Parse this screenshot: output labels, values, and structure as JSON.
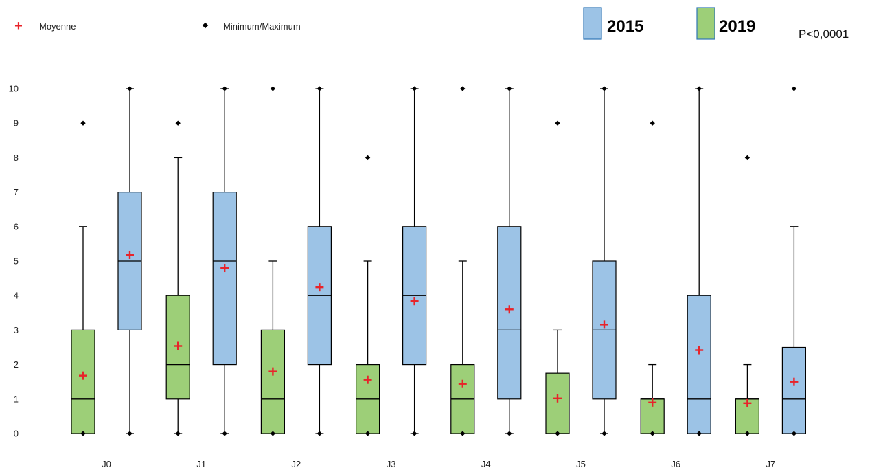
{
  "chart_data": {
    "type": "boxplot",
    "categories": [
      "J0",
      "J1",
      "J2",
      "J3",
      "J4",
      "J5",
      "J6",
      "J7"
    ],
    "ylim": [
      0,
      10
    ],
    "yticks": [
      "0",
      "1",
      "2",
      "3",
      "4",
      "5",
      "6",
      "7",
      "8",
      "9",
      "10"
    ],
    "grid": false,
    "legend": {
      "mean_label": "Moyenne",
      "minmax_label": "Minimum/Maximum",
      "placement": "top"
    },
    "annotation": "P<0,0001",
    "colors": {
      "2019": "#9dcf78",
      "2015": "#9cc3e6",
      "mean_marker": "#e8232a",
      "outline": "#000000"
    },
    "series": [
      {
        "name": "2019",
        "boxes": [
          {
            "category": "J0",
            "q1": 0,
            "median": 1,
            "q3": 3,
            "whisker_low": 0,
            "whisker_high": 6,
            "mean": 1.68,
            "min": 0,
            "max": 9
          },
          {
            "category": "J1",
            "q1": 1,
            "median": 2,
            "q3": 4,
            "whisker_low": 0,
            "whisker_high": 8,
            "mean": 2.54,
            "min": 0,
            "max": 9
          },
          {
            "category": "J2",
            "q1": 0,
            "median": 1,
            "q3": 3,
            "whisker_low": 0,
            "whisker_high": 5,
            "mean": 1.8,
            "min": 0,
            "max": 10
          },
          {
            "category": "J3",
            "q1": 0,
            "median": 1,
            "q3": 2,
            "whisker_low": 0,
            "whisker_high": 5,
            "mean": 1.56,
            "min": 0,
            "max": 8
          },
          {
            "category": "J4",
            "q1": 0,
            "median": 1,
            "q3": 2,
            "whisker_low": 0,
            "whisker_high": 5,
            "mean": 1.44,
            "min": 0,
            "max": 10
          },
          {
            "category": "J5",
            "q1": 0,
            "median": 0,
            "q3": 1.75,
            "whisker_low": 0,
            "whisker_high": 3,
            "mean": 1.02,
            "min": 0,
            "max": 9
          },
          {
            "category": "J6",
            "q1": 0,
            "median": 1,
            "q3": 1,
            "whisker_low": 0,
            "whisker_high": 2,
            "mean": 0.9,
            "min": 0,
            "max": 9
          },
          {
            "category": "J7",
            "q1": 0,
            "median": 1,
            "q3": 1,
            "whisker_low": 0,
            "whisker_high": 2,
            "mean": 0.88,
            "min": 0,
            "max": 8
          }
        ]
      },
      {
        "name": "2015",
        "boxes": [
          {
            "category": "J0",
            "q1": 3,
            "median": 5,
            "q3": 7,
            "whisker_low": 0,
            "whisker_high": 10,
            "mean": 5.18,
            "min": 0,
            "max": 10
          },
          {
            "category": "J1",
            "q1": 2,
            "median": 5,
            "q3": 7,
            "whisker_low": 0,
            "whisker_high": 10,
            "mean": 4.8,
            "min": 0,
            "max": 10
          },
          {
            "category": "J2",
            "q1": 2,
            "median": 4,
            "q3": 6,
            "whisker_low": 0,
            "whisker_high": 10,
            "mean": 4.24,
            "min": 0,
            "max": 10
          },
          {
            "category": "J3",
            "q1": 2,
            "median": 4,
            "q3": 6,
            "whisker_low": 0,
            "whisker_high": 10,
            "mean": 3.84,
            "min": 0,
            "max": 10
          },
          {
            "category": "J4",
            "q1": 1,
            "median": 3,
            "q3": 6,
            "whisker_low": 0,
            "whisker_high": 10,
            "mean": 3.6,
            "min": 0,
            "max": 10
          },
          {
            "category": "J5",
            "q1": 1,
            "median": 3,
            "q3": 5,
            "whisker_low": 0,
            "whisker_high": 10,
            "mean": 3.16,
            "min": 0,
            "max": 10
          },
          {
            "category": "J6",
            "q1": 0,
            "median": 1,
            "q3": 4,
            "whisker_low": 0,
            "whisker_high": 10,
            "mean": 2.42,
            "min": 0,
            "max": 10
          },
          {
            "category": "J7",
            "q1": 0,
            "median": 1,
            "q3": 2.5,
            "whisker_low": 0,
            "whisker_high": 6,
            "mean": 1.5,
            "min": 0,
            "max": 10
          }
        ]
      }
    ]
  }
}
